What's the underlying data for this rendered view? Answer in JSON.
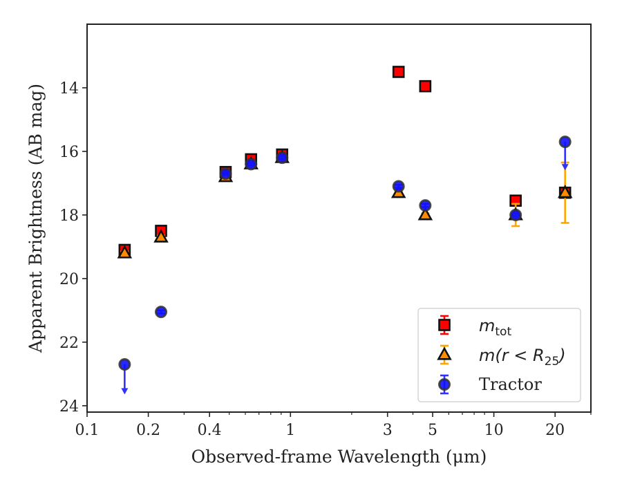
{
  "chart_data": {
    "type": "scatter",
    "title": "",
    "xlabel": "Observed-frame Wavelength (μm)",
    "ylabel": "Apparent Brightness (AB mag)",
    "xscale": "log",
    "xlim": [
      0.1,
      30
    ],
    "ylim": [
      24.2,
      12.0
    ],
    "y_inverted": true,
    "grid": false,
    "legend_position": "lower-right",
    "x_ticks": [
      0.1,
      0.2,
      0.4,
      1,
      3,
      5,
      10,
      20
    ],
    "x_tick_labels": [
      "0.1",
      "0.2",
      "0.4",
      "1",
      "3",
      "5",
      "10",
      "20"
    ],
    "y_ticks": [
      14,
      16,
      18,
      20,
      22,
      24
    ],
    "y_tick_labels": [
      "14",
      "16",
      "18",
      "20",
      "22",
      "24"
    ],
    "series": [
      {
        "name": "m_tot",
        "legend_main": "m",
        "legend_sub": "tot",
        "marker": "square",
        "color": "#ff0000",
        "errcolor": "#ff0000",
        "points": [
          {
            "x": 0.153,
            "y": 19.1,
            "err": 0.05
          },
          {
            "x": 0.231,
            "y": 18.5,
            "err": 0.05
          },
          {
            "x": 0.48,
            "y": 16.65,
            "err": 0.05
          },
          {
            "x": 0.64,
            "y": 16.25,
            "err": 0.05
          },
          {
            "x": 0.91,
            "y": 16.1,
            "err": 0.05
          },
          {
            "x": 3.4,
            "y": 13.5,
            "err": 0.05
          },
          {
            "x": 4.6,
            "y": 13.95,
            "err": 0.05
          },
          {
            "x": 12.8,
            "y": 17.55,
            "err": 0.05
          },
          {
            "x": 22.4,
            "y": 17.3,
            "err": 0.05
          }
        ]
      },
      {
        "name": "m(r < R25)",
        "legend_main": "m(r < R",
        "legend_sub": "25",
        "legend_tail": ")",
        "marker": "triangle",
        "color": "#ff8c00",
        "errcolor": "#ffa500",
        "points": [
          {
            "x": 0.153,
            "y": 19.2,
            "err": 0.05
          },
          {
            "x": 0.231,
            "y": 18.7,
            "err": 0.05
          },
          {
            "x": 0.48,
            "y": 16.8,
            "err": 0.05
          },
          {
            "x": 0.64,
            "y": 16.4,
            "err": 0.05
          },
          {
            "x": 0.91,
            "y": 16.2,
            "err": 0.05
          },
          {
            "x": 3.4,
            "y": 17.3,
            "err": 0.05
          },
          {
            "x": 4.6,
            "y": 18.0,
            "err": 0.05
          },
          {
            "x": 12.8,
            "y": 18.0,
            "err": 0.35
          },
          {
            "x": 22.4,
            "y": 17.3,
            "err": 0.95
          }
        ]
      },
      {
        "name": "Tractor",
        "marker": "circle",
        "color": "#1010ff",
        "errcolor": "#3030ff",
        "points": [
          {
            "x": 0.153,
            "y": 22.7,
            "upper_limit": true,
            "arrow_to": 23.6
          },
          {
            "x": 0.231,
            "y": 21.05,
            "err": 0.05
          },
          {
            "x": 0.48,
            "y": 16.7,
            "err": 0.05
          },
          {
            "x": 0.64,
            "y": 16.4,
            "err": 0.05
          },
          {
            "x": 0.91,
            "y": 16.2,
            "err": 0.05
          },
          {
            "x": 3.4,
            "y": 17.1,
            "err": 0.05
          },
          {
            "x": 4.6,
            "y": 17.7,
            "err": 0.05
          },
          {
            "x": 12.8,
            "y": 18.0,
            "err": 0.05
          },
          {
            "x": 22.4,
            "y": 15.7,
            "upper_limit": true,
            "arrow_to": 16.55
          }
        ]
      }
    ]
  }
}
